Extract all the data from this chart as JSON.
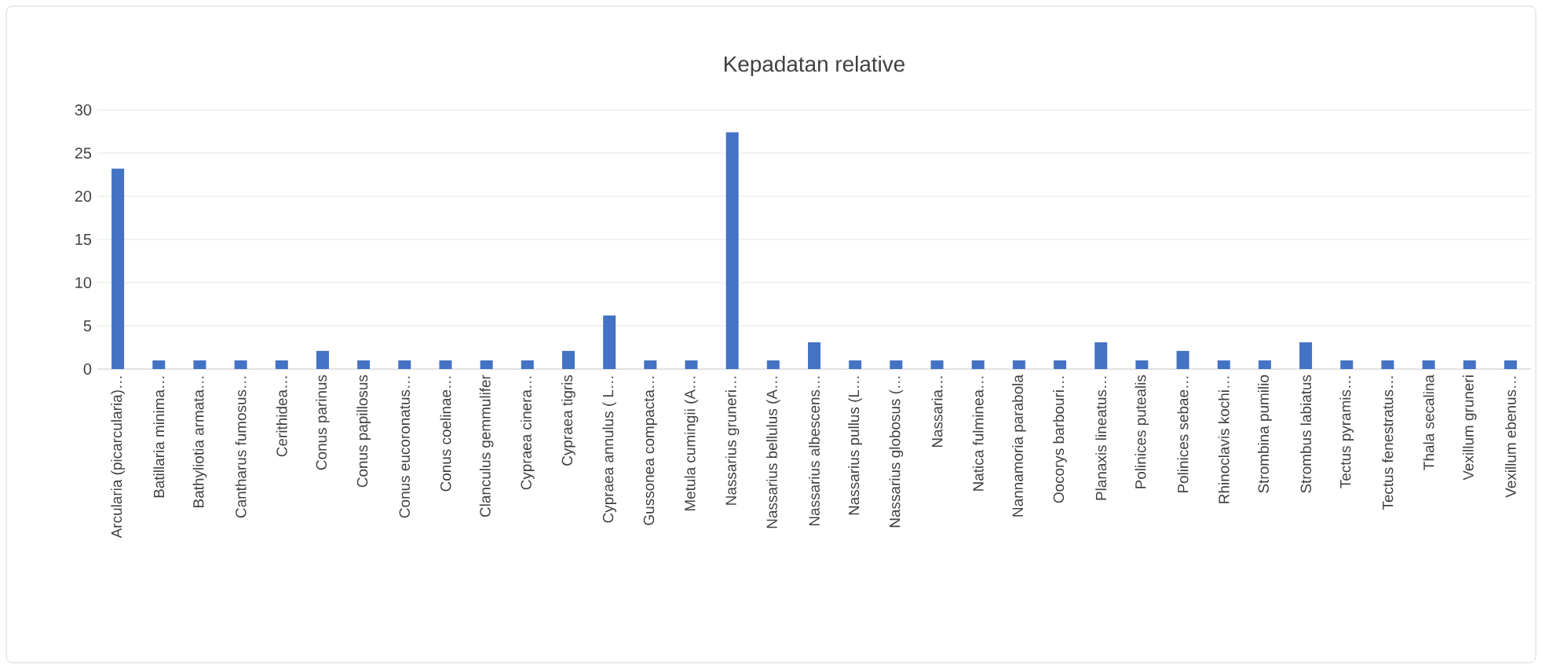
{
  "chart_data": {
    "type": "bar",
    "title": "Kepadatan relative",
    "categories": [
      "Arcularia (picarcularia)…",
      "Batillaria minima…",
      "Bathyliotia armata…",
      "Cantharus fumosus…",
      "Cerithidea…",
      "Conus parinus",
      "Conus papillosus",
      "Conus eucoronatus…",
      "Conus coelinae…",
      "Clanculus gemmulifer",
      "Cypraea cinera…",
      "Cypraea tigris",
      "Cypraea annulus ( L…",
      "Gussonea compacta…",
      "Metula cumingii (A…",
      "Nassarius gruneri…",
      "Nassarius bellulus (A…",
      "Nassarius albescens…",
      "Nassarius pullus (L…",
      "Nassarius globosus (…",
      "Nassaria…",
      "Natica fulminea…",
      "Nannamoria parabola",
      "Oocorys barbouri…",
      "Planaxis lineatus…",
      "Polinices putealis",
      "Polinices sebae…",
      "Rhinoclavis kochi…",
      "Strombina pumilio",
      "Strombus labiatus",
      "Tectus pyramis…",
      "Tectus fenestratus…",
      "Thala secalina",
      "Vexillum gruneri",
      "Vexillum ebenus…"
    ],
    "values": [
      23.2,
      1,
      1,
      1,
      1,
      2.1,
      1,
      1,
      1,
      1,
      1,
      2.1,
      6.2,
      1,
      1,
      27.4,
      1,
      3.1,
      1,
      1,
      1,
      1,
      1,
      1,
      3.1,
      1,
      2.1,
      1,
      1,
      3.1,
      1,
      1,
      1,
      1,
      1
    ],
    "color": "#4472c4",
    "ylim": [
      0,
      30
    ],
    "yticks": [
      0,
      5,
      10,
      15,
      20,
      25,
      30
    ],
    "grid": "y"
  }
}
